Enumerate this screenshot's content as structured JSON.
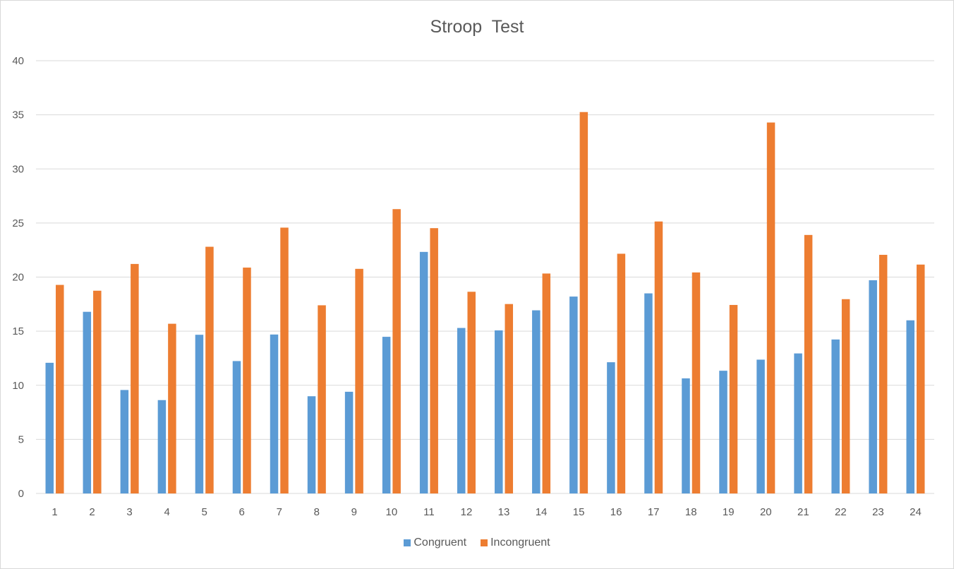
{
  "chart_data": {
    "type": "bar",
    "title": "Stroop  Test",
    "xlabel": "",
    "ylabel": "",
    "ylim": [
      0,
      40
    ],
    "yticks": [
      0,
      5,
      10,
      15,
      20,
      25,
      30,
      35,
      40
    ],
    "grid": true,
    "legend_position": "bottom",
    "categories": [
      "1",
      "2",
      "3",
      "4",
      "5",
      "6",
      "7",
      "8",
      "9",
      "10",
      "11",
      "12",
      "13",
      "14",
      "15",
      "16",
      "17",
      "18",
      "19",
      "20",
      "21",
      "22",
      "23",
      "24"
    ],
    "series": [
      {
        "name": "Congruent",
        "color": "#5b9bd5",
        "values": [
          12.079,
          16.791,
          9.564,
          8.63,
          14.669,
          12.238,
          14.692,
          8.987,
          9.401,
          14.48,
          22.328,
          15.298,
          15.073,
          16.929,
          18.2,
          12.13,
          18.495,
          10.639,
          11.344,
          12.369,
          12.944,
          14.233,
          19.71,
          16.004
        ]
      },
      {
        "name": "Incongruent",
        "color": "#ed7d31",
        "values": [
          19.278,
          18.741,
          21.214,
          15.687,
          22.803,
          20.878,
          24.572,
          17.394,
          20.762,
          26.282,
          24.524,
          18.644,
          17.51,
          20.33,
          35.255,
          22.158,
          25.139,
          20.429,
          17.425,
          34.288,
          23.894,
          17.96,
          22.058,
          21.157
        ]
      }
    ]
  }
}
